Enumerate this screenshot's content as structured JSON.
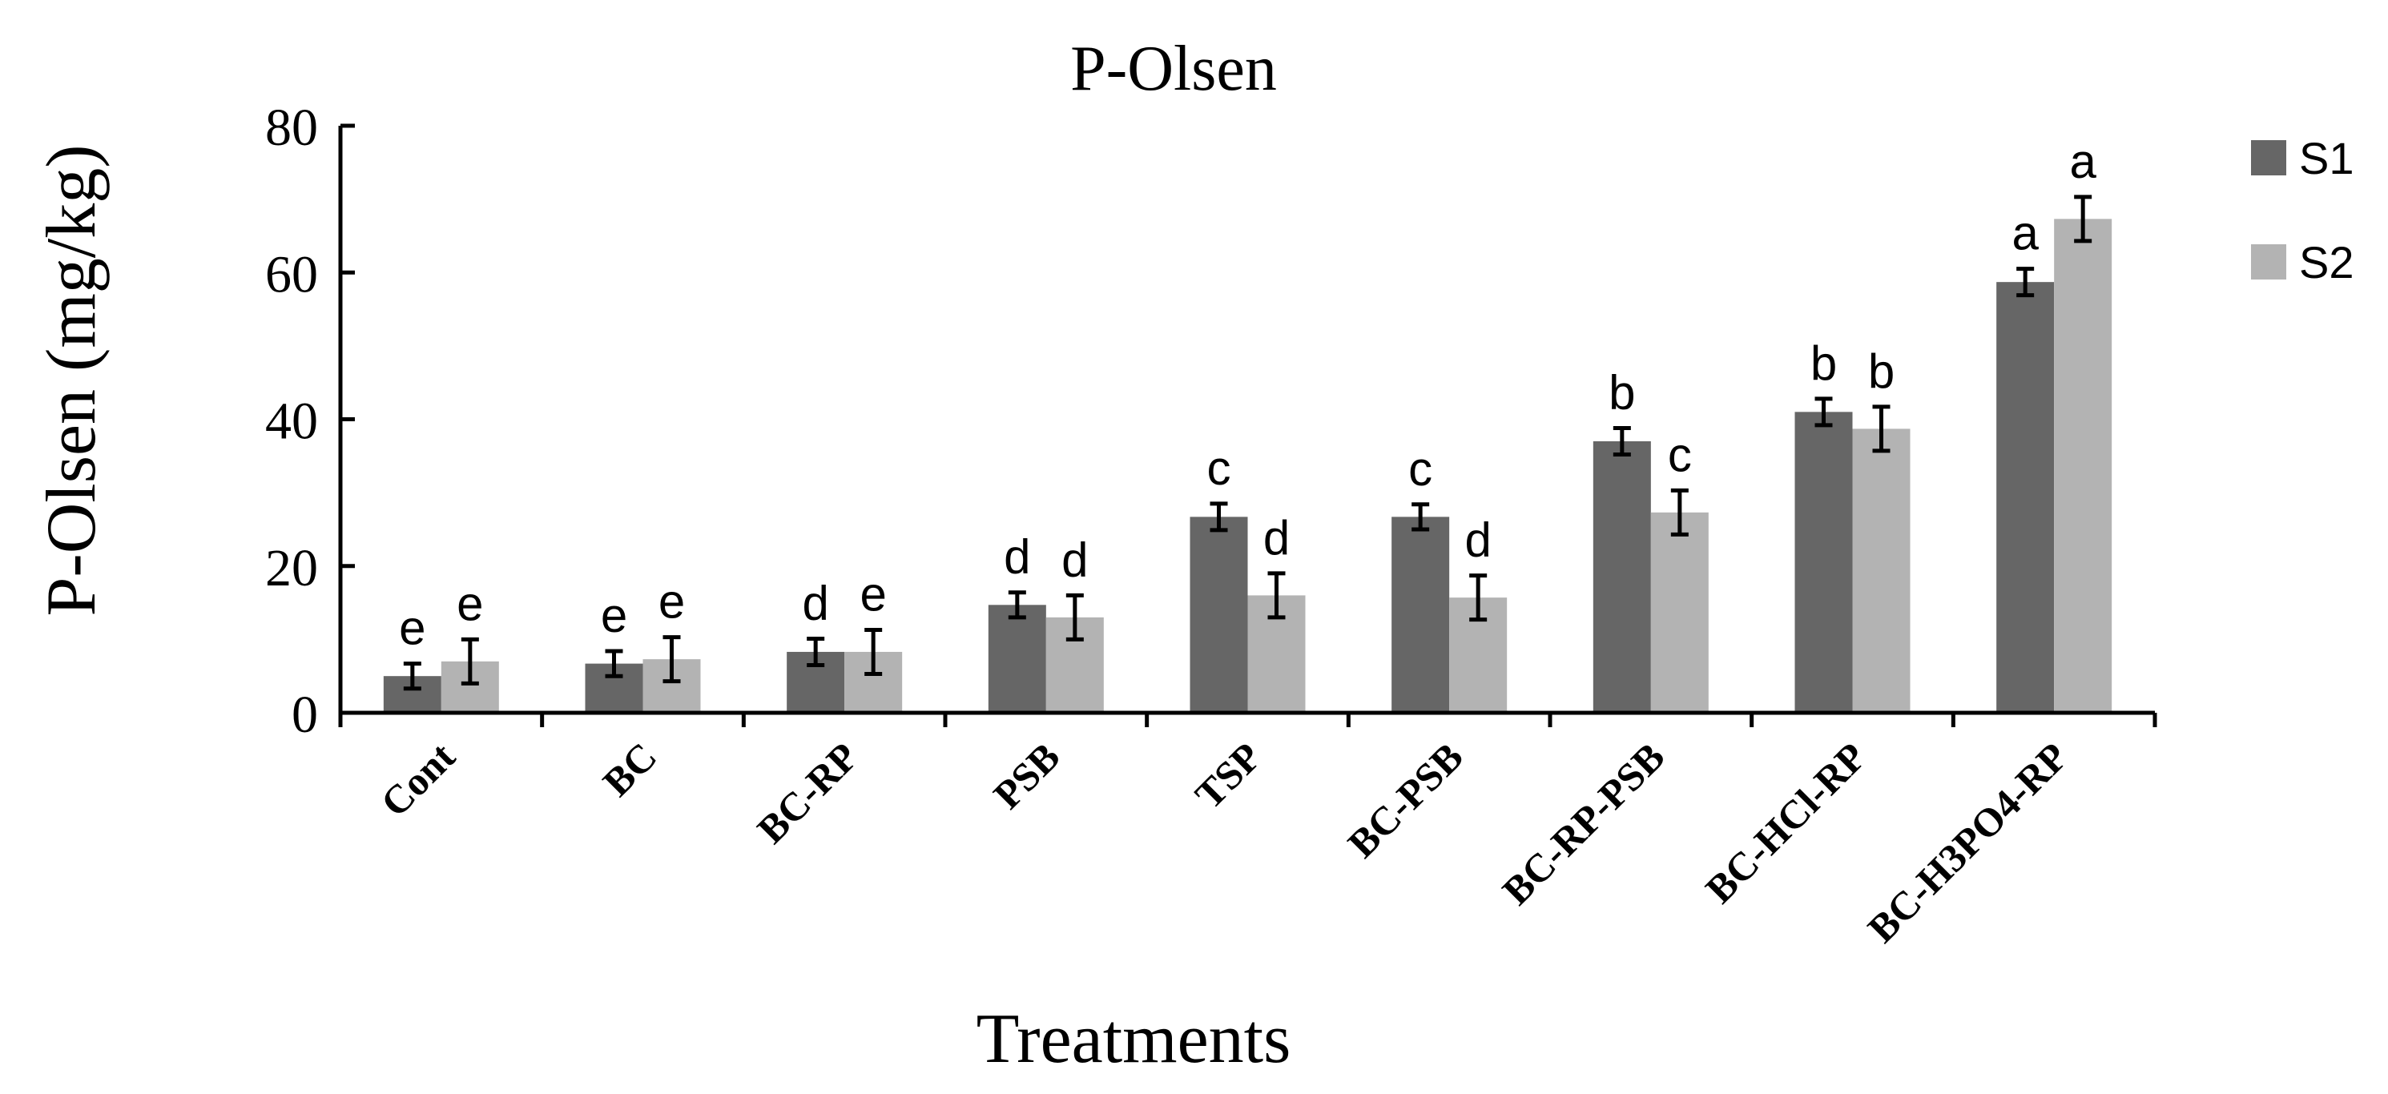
{
  "chart_data": {
    "type": "bar",
    "title": "P-Olsen",
    "xlabel": "Treatments",
    "ylabel": "P-Olsen (mg/kg)",
    "ylim": [
      0,
      80
    ],
    "yticks": [
      "0",
      "20",
      "40",
      "60",
      "80"
    ],
    "ytick_values": [
      0,
      20,
      40,
      60,
      80
    ],
    "grid": false,
    "legend_position": "top-right",
    "categories": [
      "Cont",
      "BC",
      "BC-RP",
      "PSB",
      "TSP",
      "BC-PSB",
      "BC-RP-PSB",
      "BC-HCl-RP",
      "BC-H3PO4-RP"
    ],
    "series": [
      {
        "name": "S1",
        "color": "#666666",
        "values": [
          5,
          6.7,
          8.3,
          14.7,
          26.7,
          26.7,
          37,
          41,
          58.7
        ],
        "errors": [
          1.7,
          1.7,
          1.8,
          1.7,
          1.8,
          1.7,
          1.8,
          1.8,
          1.8
        ],
        "letters": [
          "e",
          "e",
          "d",
          "d",
          "c",
          "c",
          "b",
          "b",
          "a"
        ]
      },
      {
        "name": "S2",
        "color": "#b3b3b3",
        "values": [
          7,
          7.3,
          8.3,
          13,
          16,
          15.7,
          27.3,
          38.7,
          67.3
        ],
        "errors": [
          3.0,
          3.0,
          3.0,
          3.0,
          3.0,
          3.0,
          3.0,
          3.0,
          3.0
        ],
        "letters": [
          "e",
          "e",
          "e",
          "d",
          "d",
          "d",
          "c",
          "b",
          "a"
        ]
      }
    ]
  }
}
